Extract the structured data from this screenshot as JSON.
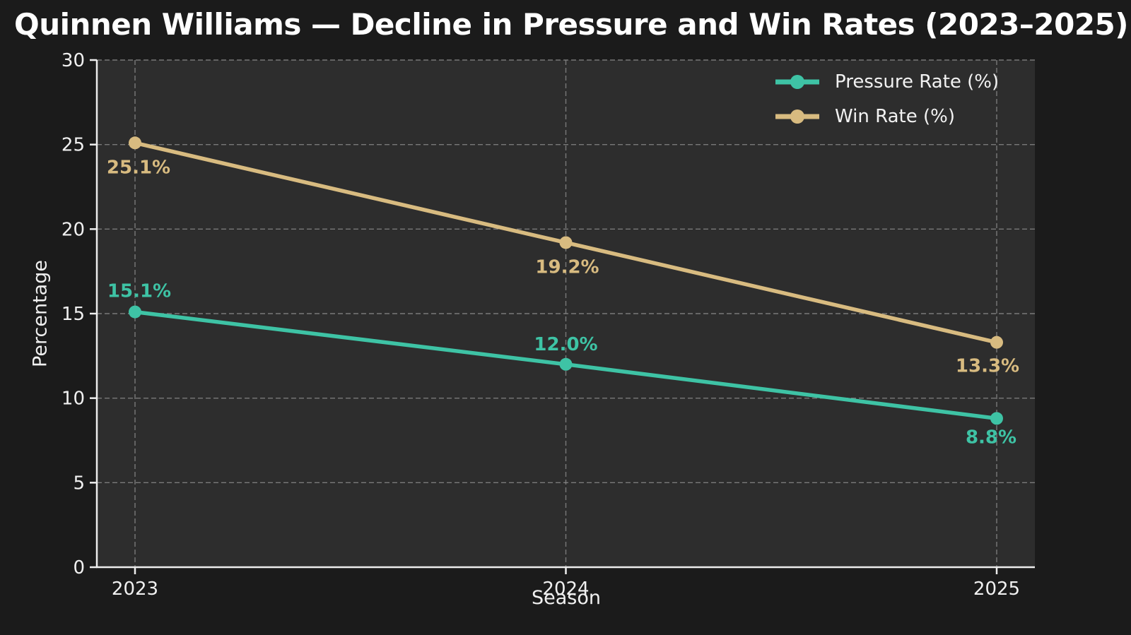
{
  "title": "Quinnen Williams — Decline in Pressure and Win Rates (2023–2025)",
  "colors": {
    "background": "#1b1b1b",
    "plot_background": "#2d2d2d",
    "grid": "#8c8c8c",
    "spine": "#ededed",
    "tick_text": "#f0f0f0",
    "title_text": "#ffffff",
    "pressure": "#3ec3a5",
    "win": "#d8bb80"
  },
  "chart_data": {
    "type": "line",
    "title": "Quinnen Williams — Decline in Pressure and Win Rates (2023–2025)",
    "x": [
      "2023",
      "2024",
      "2025"
    ],
    "series": [
      {
        "name": "Pressure Rate (%)",
        "color_key": "pressure",
        "values": [
          15.1,
          12.0,
          8.8
        ],
        "value_labels": [
          "15.1%",
          "12.0%",
          "8.8%"
        ],
        "label_offsets": [
          [
            6,
            -30
          ],
          [
            0,
            -29
          ],
          [
            -8,
            26
          ]
        ]
      },
      {
        "name": "Win Rate (%)",
        "color_key": "win",
        "values": [
          25.1,
          19.2,
          13.3
        ],
        "value_labels": [
          "25.1%",
          "19.2%",
          "13.3%"
        ],
        "label_offsets": [
          [
            5,
            34
          ],
          [
            2,
            34
          ],
          [
            -13,
            33
          ]
        ]
      }
    ],
    "xlabel": "Season",
    "ylabel": "Percentage",
    "ylim": [
      0,
      30
    ],
    "yticks": [
      0,
      5,
      10,
      15,
      20,
      25,
      30
    ],
    "grid": true,
    "grid_style": "dashed",
    "legend_position": "upper right"
  },
  "legend": {
    "items": [
      {
        "label": "Pressure Rate (%)",
        "color_key": "pressure"
      },
      {
        "label": "Win Rate (%)",
        "color_key": "win"
      }
    ]
  }
}
